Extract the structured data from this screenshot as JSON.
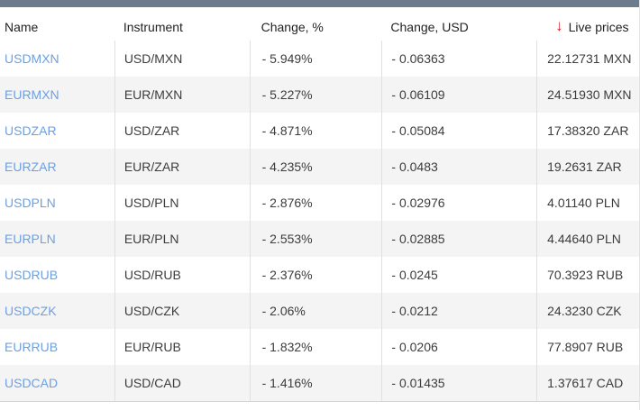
{
  "table": {
    "columns": [
      {
        "label": "Name"
      },
      {
        "label": "Instrument"
      },
      {
        "label": "Change, %"
      },
      {
        "label": "Change, USD"
      },
      {
        "label": "Live prices"
      }
    ],
    "sort_arrow": "↓",
    "rows": [
      {
        "name": "USDMXN",
        "instrument": "USD/MXN",
        "change_pct": "- 5.949%",
        "change_usd": "- 0.06363",
        "price": "22.12731 MXN"
      },
      {
        "name": "EURMXN",
        "instrument": "EUR/MXN",
        "change_pct": "- 5.227%",
        "change_usd": "- 0.06109",
        "price": "24.51930 MXN"
      },
      {
        "name": "USDZAR",
        "instrument": "USD/ZAR",
        "change_pct": "- 4.871%",
        "change_usd": "- 0.05084",
        "price": "17.38320 ZAR"
      },
      {
        "name": "EURZAR",
        "instrument": "EUR/ZAR",
        "change_pct": "- 4.235%",
        "change_usd": "- 0.0483",
        "price": "19.2631 ZAR"
      },
      {
        "name": "USDPLN",
        "instrument": "USD/PLN",
        "change_pct": "- 2.876%",
        "change_usd": "- 0.02976",
        "price": "4.01140 PLN"
      },
      {
        "name": "EURPLN",
        "instrument": "EUR/PLN",
        "change_pct": "- 2.553%",
        "change_usd": "- 0.02885",
        "price": "4.44640 PLN"
      },
      {
        "name": "USDRUB",
        "instrument": "USD/RUB",
        "change_pct": "- 2.376%",
        "change_usd": "- 0.0245",
        "price": "70.3923 RUB"
      },
      {
        "name": "USDCZK",
        "instrument": "USD/CZK",
        "change_pct": "- 2.06%",
        "change_usd": "- 0.0212",
        "price": "24.3230 CZK"
      },
      {
        "name": "EURRUB",
        "instrument": "EUR/RUB",
        "change_pct": "- 1.832%",
        "change_usd": "- 0.0206",
        "price": "77.8907 RUB"
      },
      {
        "name": "USDCAD",
        "instrument": "USD/CAD",
        "change_pct": "- 1.416%",
        "change_usd": "- 0.01435",
        "price": "1.37617 CAD"
      }
    ]
  },
  "colors": {
    "top_bar": "#6c7c8c",
    "link_blue": "#6da0e2",
    "arrow_red": "#e6191e",
    "row_stripe": "#f4f4f5",
    "separator": "#e0e0e0"
  }
}
